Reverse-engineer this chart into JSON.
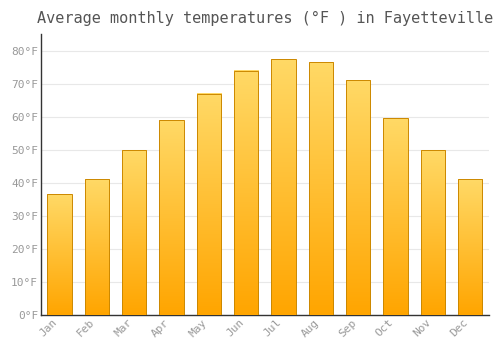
{
  "title": "Average monthly temperatures (°F ) in Fayetteville",
  "months": [
    "Jan",
    "Feb",
    "Mar",
    "Apr",
    "May",
    "Jun",
    "Jul",
    "Aug",
    "Sep",
    "Oct",
    "Nov",
    "Dec"
  ],
  "values": [
    36.5,
    41.0,
    50.0,
    59.0,
    67.0,
    74.0,
    77.5,
    76.5,
    71.0,
    59.5,
    50.0,
    41.0
  ],
  "bar_color_bottom": "#FFA500",
  "bar_color_top": "#FFD966",
  "bar_edge_color": "#CC8800",
  "background_color": "#FFFFFF",
  "grid_color": "#E8E8E8",
  "text_color": "#999999",
  "axis_color": "#333333",
  "ylim": [
    0,
    85
  ],
  "yticks": [
    0,
    10,
    20,
    30,
    40,
    50,
    60,
    70,
    80
  ],
  "ytick_labels": [
    "0°F",
    "10°F",
    "20°F",
    "30°F",
    "40°F",
    "50°F",
    "60°F",
    "70°F",
    "80°F"
  ],
  "title_fontsize": 11,
  "tick_fontsize": 8,
  "font_family": "monospace"
}
